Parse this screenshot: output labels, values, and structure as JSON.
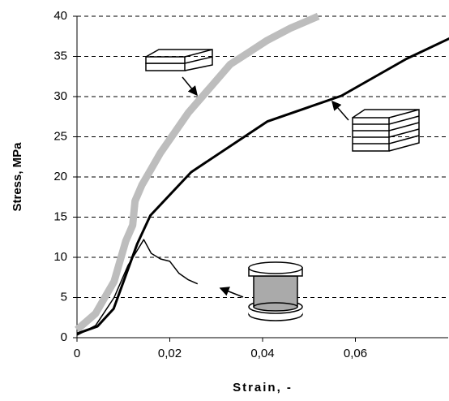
{
  "chart_data": {
    "type": "line",
    "x_label": "Strain, -",
    "y_label": "Stress, MPa",
    "xlim": [
      0,
      0.08
    ],
    "ylim": [
      0,
      40
    ],
    "xticks": [
      {
        "value": 0,
        "label": "0"
      },
      {
        "value": 0.02,
        "label": "0,02"
      },
      {
        "value": 0.04,
        "label": "0,04"
      },
      {
        "value": 0.06,
        "label": "0,06"
      }
    ],
    "yticks": [
      0,
      5,
      10,
      15,
      20,
      25,
      30,
      35,
      40
    ],
    "grid": true,
    "series": [
      {
        "color": "#bdbdbd",
        "width": 9,
        "x": [
          0,
          0.002,
          0.004,
          0.006,
          0.008,
          0.009,
          0.0105,
          0.012,
          0.0125,
          0.014,
          0.016,
          0.018,
          0.021,
          0.024,
          0.027,
          0.03,
          0.033,
          0.037,
          0.041,
          0.046,
          0.052
        ],
        "values": [
          1,
          2,
          3,
          5,
          7,
          9,
          12,
          14,
          17,
          19,
          21,
          23,
          25.5,
          28,
          30,
          32,
          34,
          35.5,
          37,
          38.5,
          40
        ]
      },
      {
        "color": "#000000",
        "width": 3,
        "x": [
          0,
          0.0044,
          0.0079,
          0.013,
          0.0158,
          0.0246,
          0.041,
          0.057,
          0.071,
          0.0805
        ],
        "values": [
          0.5,
          1.4,
          3.6,
          11.7,
          15.2,
          20.6,
          26.9,
          30.1,
          34.7,
          37.3
        ]
      },
      {
        "color": "#000000",
        "width": 1.5,
        "x": [
          0,
          0.004,
          0.008,
          0.011,
          0.0144,
          0.016,
          0.018,
          0.02,
          0.022,
          0.024,
          0.026
        ],
        "values": [
          0.3,
          1.5,
          5,
          9,
          12.2,
          10.5,
          9.8,
          9.5,
          8,
          7.2,
          6.7
        ]
      }
    ]
  }
}
